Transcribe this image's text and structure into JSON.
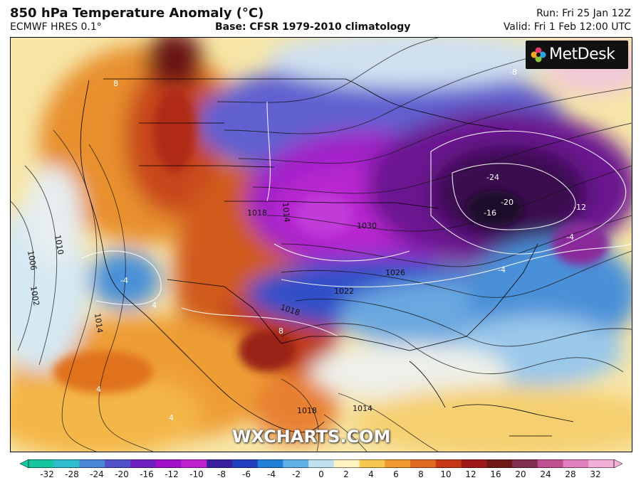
{
  "header": {
    "title": "850 hPa Temperature Anomaly (°C)",
    "model": "ECMWF HRES 0.1°",
    "base": "Base: CFSR 1979-2010 climatology",
    "run": "Run: Fri 25 Jan 12Z",
    "valid": "Valid: Fri 1 Feb 12:00 UTC"
  },
  "logo": {
    "text": "MetDesk",
    "icon": "flower-icon"
  },
  "watermark": "WXCHARTS.COM",
  "map": {
    "region": "North America, Central America and Caribbean",
    "isobar_labels": [
      "1010",
      "1006",
      "1002",
      "1014",
      "1018",
      "1022",
      "1026",
      "1030",
      "1018",
      "1014",
      "1018",
      "1014"
    ],
    "anomaly_labels": [
      "-24",
      "-20",
      "-16",
      "-12",
      "-8",
      "-4",
      "-4",
      "-4",
      "4",
      "4",
      "4",
      "8",
      "8"
    ]
  },
  "colorbar": {
    "ticks": [
      "-32",
      "-28",
      "-24",
      "-20",
      "-16",
      "-12",
      "-10",
      "-8",
      "-6",
      "-4",
      "-2",
      "0",
      "2",
      "4",
      "6",
      "8",
      "10",
      "12",
      "16",
      "20",
      "24",
      "28",
      "32"
    ],
    "colors": [
      "#15c7a0",
      "#2fbfd0",
      "#4a86d8",
      "#5050c8",
      "#7020c0",
      "#a010c8",
      "#c020d0",
      "#3a20a0",
      "#2040c0",
      "#2080d8",
      "#60b0e8",
      "#c0e0f0",
      "#fff4c0",
      "#f6c850",
      "#f09a30",
      "#e06a20",
      "#c83818",
      "#a01818",
      "#701818",
      "#803050",
      "#c05090",
      "#e080c0",
      "#f0b0d8"
    ],
    "min": -32,
    "max": 32
  }
}
